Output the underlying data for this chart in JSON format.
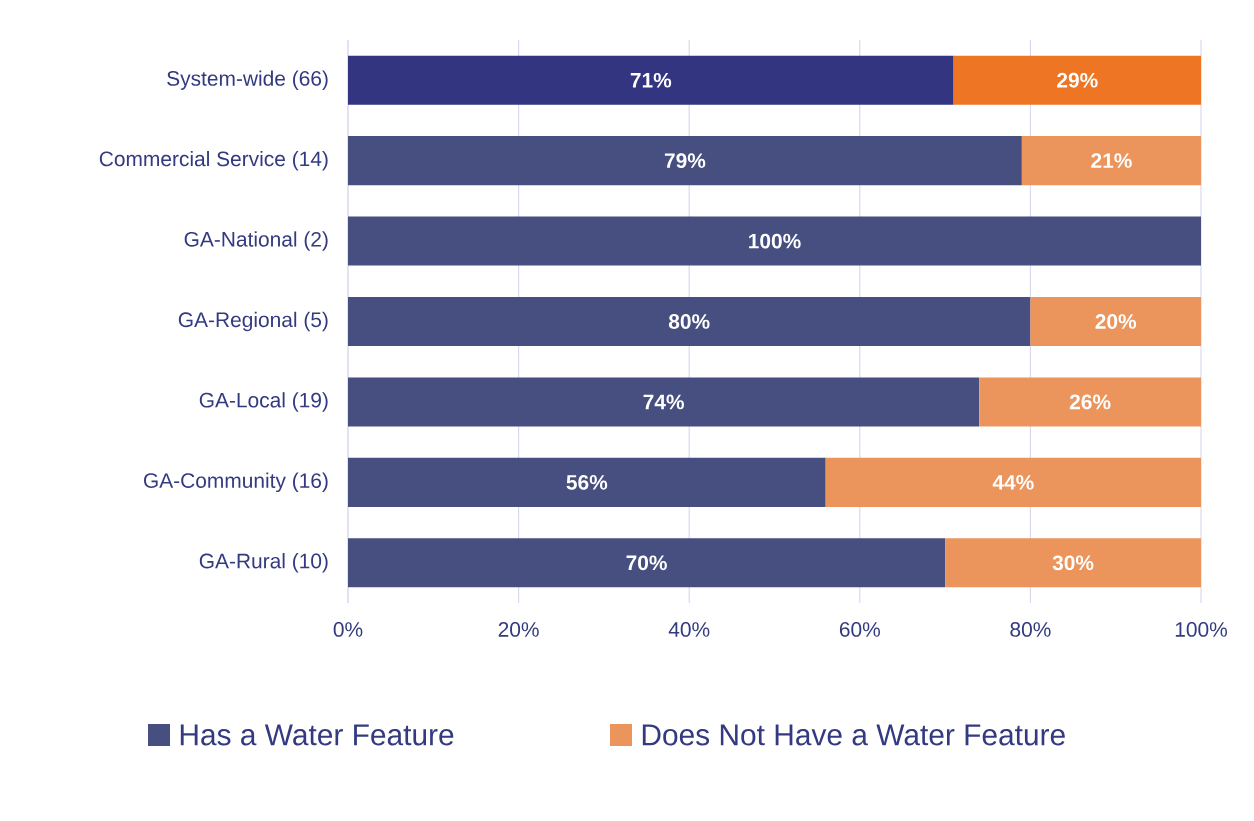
{
  "chart_data": {
    "type": "bar",
    "orientation": "horizontal",
    "stacked": true,
    "categories": [
      "System-wide (66)",
      "Commercial Service (14)",
      "GA-National (2)",
      "GA-Regional (5)",
      "GA-Local (19)",
      "GA-Community (16)",
      "GA-Rural (10)"
    ],
    "series": [
      {
        "name": "Has a Water Feature",
        "color": "#474f80",
        "colors": [
          "#333580",
          "#474f80",
          "#474f80",
          "#474f80",
          "#474f80",
          "#474f80",
          "#474f80"
        ],
        "values": [
          71,
          79,
          100,
          80,
          74,
          56,
          70
        ],
        "value_labels": [
          "71%",
          "79%",
          "100%",
          "80%",
          "74%",
          "56%",
          "70%"
        ]
      },
      {
        "name": "Does Not Have a Water Feature",
        "color": "#eb955d",
        "colors": [
          "#ee7523",
          "#eb955d",
          "#eb955d",
          "#eb955d",
          "#eb955d",
          "#eb955d",
          "#eb955d"
        ],
        "values": [
          29,
          21,
          null,
          20,
          26,
          44,
          30
        ],
        "value_labels": [
          "29%",
          "21%",
          null,
          "20%",
          "26%",
          "44%",
          "30%"
        ]
      }
    ],
    "xlim": [
      0,
      100
    ],
    "xticks": [
      {
        "value": 0,
        "label": "0%"
      },
      {
        "value": 20,
        "label": "20%"
      },
      {
        "value": 40,
        "label": "40%"
      },
      {
        "value": 60,
        "label": "60%"
      },
      {
        "value": 80,
        "label": "80%"
      },
      {
        "value": 100,
        "label": "100%"
      }
    ],
    "grid": "x",
    "legend": "bottom"
  }
}
